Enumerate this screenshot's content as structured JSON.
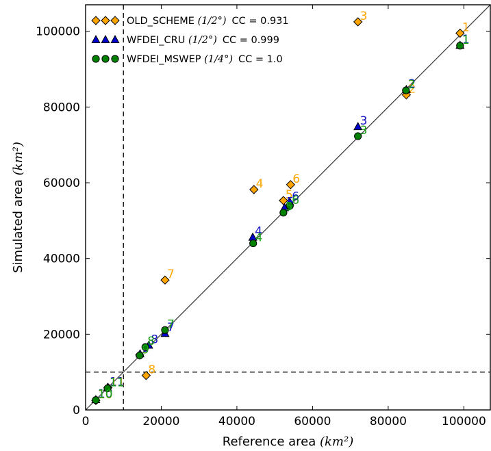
{
  "chart_data": {
    "type": "scatter",
    "xlabel": "Reference area",
    "xlabel_unit": "(km²)",
    "ylabel": "Simulated area",
    "ylabel_unit": "(km²)",
    "xlim": [
      0,
      107000
    ],
    "ylim": [
      0,
      107000
    ],
    "xticks": [
      0,
      20000,
      40000,
      60000,
      80000,
      100000
    ],
    "yticks": [
      0,
      20000,
      40000,
      60000,
      80000,
      100000
    ],
    "grid": false,
    "legend_position": "top-left",
    "reference_lines": {
      "identity": true,
      "vertical_dashed_x": 10000,
      "horizontal_dashed_y": 10000
    },
    "series": [
      {
        "name": "OLD_SCHEME",
        "resolution": "(1/2°)",
        "cc_label": "CC = 0.931",
        "marker": "diamond",
        "color": "#FFA500",
        "label_color": "#FFA500",
        "points": [
          {
            "label": "1",
            "x": 99000,
            "y": 99500
          },
          {
            "label": "2",
            "x": 84800,
            "y": 83200
          },
          {
            "label": "3",
            "x": 72000,
            "y": 102500
          },
          {
            "label": "4",
            "x": 44500,
            "y": 58200
          },
          {
            "label": "5",
            "x": 52300,
            "y": 55300
          },
          {
            "label": "6",
            "x": 54200,
            "y": 59500
          },
          {
            "label": "7",
            "x": 21000,
            "y": 34300
          },
          {
            "label": "8",
            "x": 16000,
            "y": 9100
          },
          {
            "label": "9",
            "x": 14300,
            "y": 14500
          },
          {
            "label": "10",
            "x": 2700,
            "y": 2500
          },
          {
            "label": "11",
            "x": 5900,
            "y": 5900
          }
        ]
      },
      {
        "name": "WFDEI_CRU",
        "resolution": "(1/2°)",
        "cc_label": "CC = 0.999",
        "marker": "triangle",
        "color": "#0000CD",
        "label_color": "#1515C8",
        "points": [
          {
            "label": "1",
            "x": 99000,
            "y": 96300
          },
          {
            "label": "2",
            "x": 84800,
            "y": 84600
          },
          {
            "label": "3",
            "x": 72000,
            "y": 74800
          },
          {
            "label": "4",
            "x": 44200,
            "y": 45600
          },
          {
            "label": "5",
            "x": 52600,
            "y": 53400
          },
          {
            "label": "6",
            "x": 54000,
            "y": 54900
          },
          {
            "label": "7",
            "x": 21000,
            "y": 20200
          },
          {
            "label": "8",
            "x": 16700,
            "y": 17100
          },
          {
            "label": "9",
            "x": 14400,
            "y": 14800
          },
          {
            "label": "10",
            "x": 2700,
            "y": 2700
          },
          {
            "label": "11",
            "x": 5800,
            "y": 5900
          }
        ]
      },
      {
        "name": "WFDEI_MSWEP",
        "resolution": "(1/4°)",
        "cc_label": "CC = 1.0",
        "marker": "circle",
        "color": "#008000",
        "label_color": "#1AA01A",
        "points": [
          {
            "label": "1",
            "x": 99000,
            "y": 96200
          },
          {
            "label": "2",
            "x": 84700,
            "y": 84400
          },
          {
            "label": "3",
            "x": 72000,
            "y": 72300
          },
          {
            "label": "4",
            "x": 44300,
            "y": 44000
          },
          {
            "label": "5",
            "x": 52300,
            "y": 52100
          },
          {
            "label": "6",
            "x": 54000,
            "y": 53900
          },
          {
            "label": "7",
            "x": 21000,
            "y": 21100
          },
          {
            "label": "8",
            "x": 15800,
            "y": 16600
          },
          {
            "label": "9",
            "x": 14300,
            "y": 14400
          },
          {
            "label": "10",
            "x": 2700,
            "y": 2600
          },
          {
            "label": "11",
            "x": 5800,
            "y": 5700
          }
        ]
      }
    ]
  }
}
